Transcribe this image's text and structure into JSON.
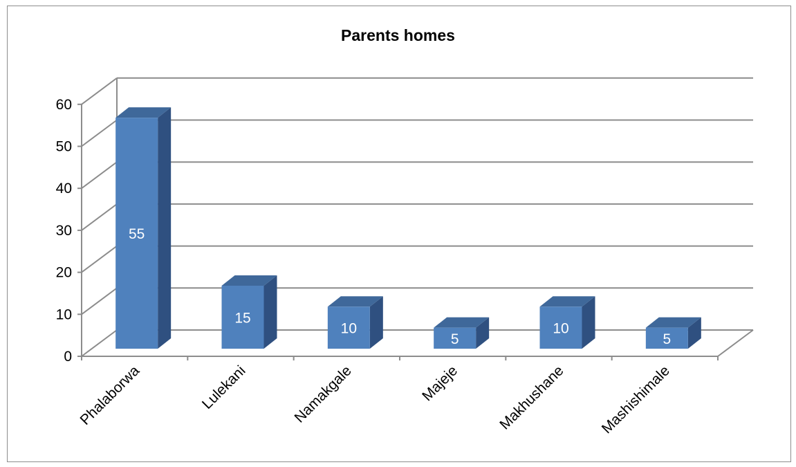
{
  "chart_data": {
    "type": "bar",
    "title": "Parents homes",
    "categories": [
      "Phalaborwa",
      "Lulekani",
      "Namakgale",
      "Majeje",
      "Makhushane",
      "Mashishimale"
    ],
    "values": [
      55,
      15,
      10,
      5,
      10,
      5
    ],
    "data_labels": [
      "55",
      "15",
      "10",
      "5",
      "10",
      "5"
    ],
    "yticks": [
      "0",
      "10",
      "20",
      "30",
      "40",
      "50",
      "60"
    ],
    "ylim": [
      0,
      60
    ],
    "grid": true,
    "legend": "none",
    "style": "3d-column",
    "colors": {
      "front": "#4f81bd",
      "top": "#3f689a",
      "side": "#2f5080",
      "grid": "#8c8c8c"
    }
  }
}
